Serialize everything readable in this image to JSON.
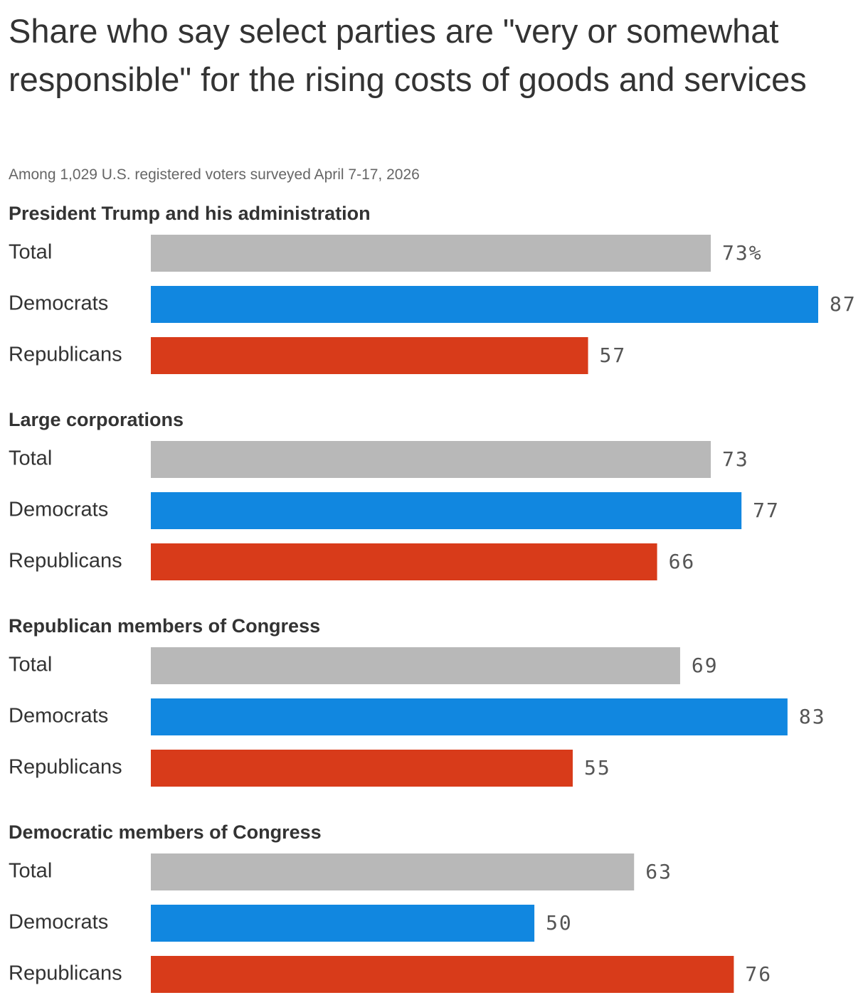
{
  "chart_data": {
    "type": "bar",
    "title": "Share who say select parties are \"very or somewhat responsible\" for the rising costs of goods and services",
    "subtitle": "Among 1,029 U.S. registered voters surveyed April 7-17, 2026",
    "groups": [
      {
        "title": "President Trump and his administration",
        "categories": [
          "Total",
          "Democrats",
          "Republicans"
        ],
        "values": [
          73,
          87,
          57
        ],
        "value_labels": [
          "73%",
          "87",
          "57"
        ],
        "colors": [
          "#b8b8b8",
          "#1187e0",
          "#d83b1a"
        ]
      },
      {
        "title": "Large corporations",
        "categories": [
          "Total",
          "Democrats",
          "Republicans"
        ],
        "values": [
          73,
          77,
          66
        ],
        "colors": [
          "#b8b8b8",
          "#1187e0",
          "#d83b1a"
        ]
      },
      {
        "title": "Republican members of Congress",
        "categories": [
          "Total",
          "Democrats",
          "Republicans"
        ],
        "values": [
          69,
          83,
          55
        ],
        "colors": [
          "#b8b8b8",
          "#1187e0",
          "#d83b1a"
        ]
      },
      {
        "title": "Democratic members of Congress",
        "categories": [
          "Total",
          "Democrats",
          "Republicans"
        ],
        "values": [
          63,
          50,
          76
        ],
        "colors": [
          "#b8b8b8",
          "#1187e0",
          "#d83b1a"
        ]
      }
    ]
  }
}
